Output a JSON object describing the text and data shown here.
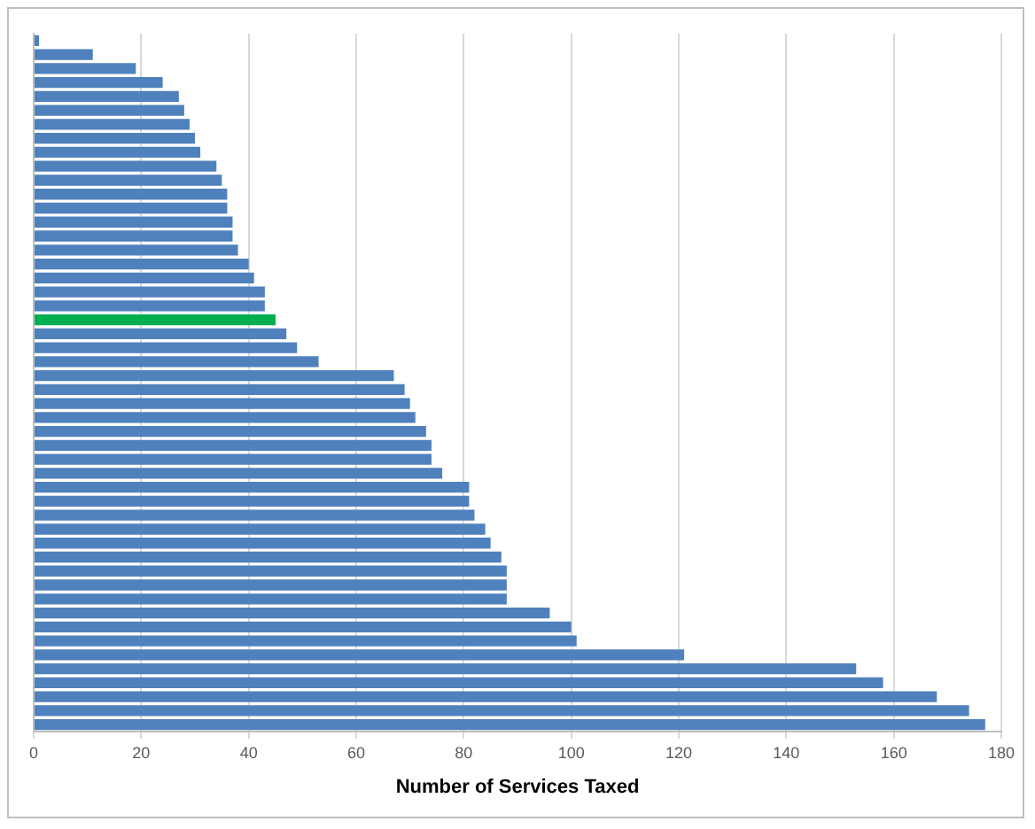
{
  "chart_data": {
    "type": "bar",
    "orientation": "horizontal",
    "xlabel": "Number of Services Taxed",
    "categories": [
      null,
      null,
      null,
      null,
      null,
      null,
      null,
      null,
      null,
      null,
      null,
      null,
      null,
      null,
      null,
      null,
      null,
      null,
      null,
      null,
      null,
      null,
      null,
      null,
      null,
      null,
      null,
      null,
      null,
      null,
      null,
      null,
      null,
      null,
      null,
      null,
      null,
      null,
      null,
      null,
      null,
      null,
      null,
      null,
      null,
      null,
      null,
      null,
      null,
      null
    ],
    "values": [
      1,
      11,
      19,
      24,
      27,
      28,
      29,
      30,
      31,
      34,
      35,
      36,
      36,
      37,
      37,
      38,
      40,
      41,
      43,
      43,
      45,
      47,
      49,
      53,
      67,
      69,
      70,
      71,
      73,
      74,
      74,
      76,
      81,
      81,
      82,
      84,
      85,
      87,
      88,
      88,
      88,
      96,
      100,
      101,
      121,
      153,
      158,
      168,
      174,
      177
    ],
    "colors": [
      "#4f81bd",
      "#4f81bd",
      "#4f81bd",
      "#4f81bd",
      "#4f81bd",
      "#4f81bd",
      "#4f81bd",
      "#4f81bd",
      "#4f81bd",
      "#4f81bd",
      "#4f81bd",
      "#4f81bd",
      "#4f81bd",
      "#4f81bd",
      "#4f81bd",
      "#4f81bd",
      "#4f81bd",
      "#4f81bd",
      "#4f81bd",
      "#4f81bd",
      "#00b050",
      "#4f81bd",
      "#4f81bd",
      "#4f81bd",
      "#4f81bd",
      "#4f81bd",
      "#4f81bd",
      "#4f81bd",
      "#4f81bd",
      "#4f81bd",
      "#4f81bd",
      "#4f81bd",
      "#4f81bd",
      "#4f81bd",
      "#4f81bd",
      "#4f81bd",
      "#4f81bd",
      "#4f81bd",
      "#4f81bd",
      "#4f81bd",
      "#4f81bd",
      "#4f81bd",
      "#4f81bd",
      "#4f81bd",
      "#4f81bd",
      "#4f81bd",
      "#4f81bd",
      "#4f81bd",
      "#4f81bd",
      "#4f81bd"
    ],
    "xlim": [
      0,
      180
    ],
    "xticks": [
      0,
      20,
      40,
      60,
      80,
      100,
      120,
      140,
      160,
      180
    ],
    "grid": "x"
  }
}
